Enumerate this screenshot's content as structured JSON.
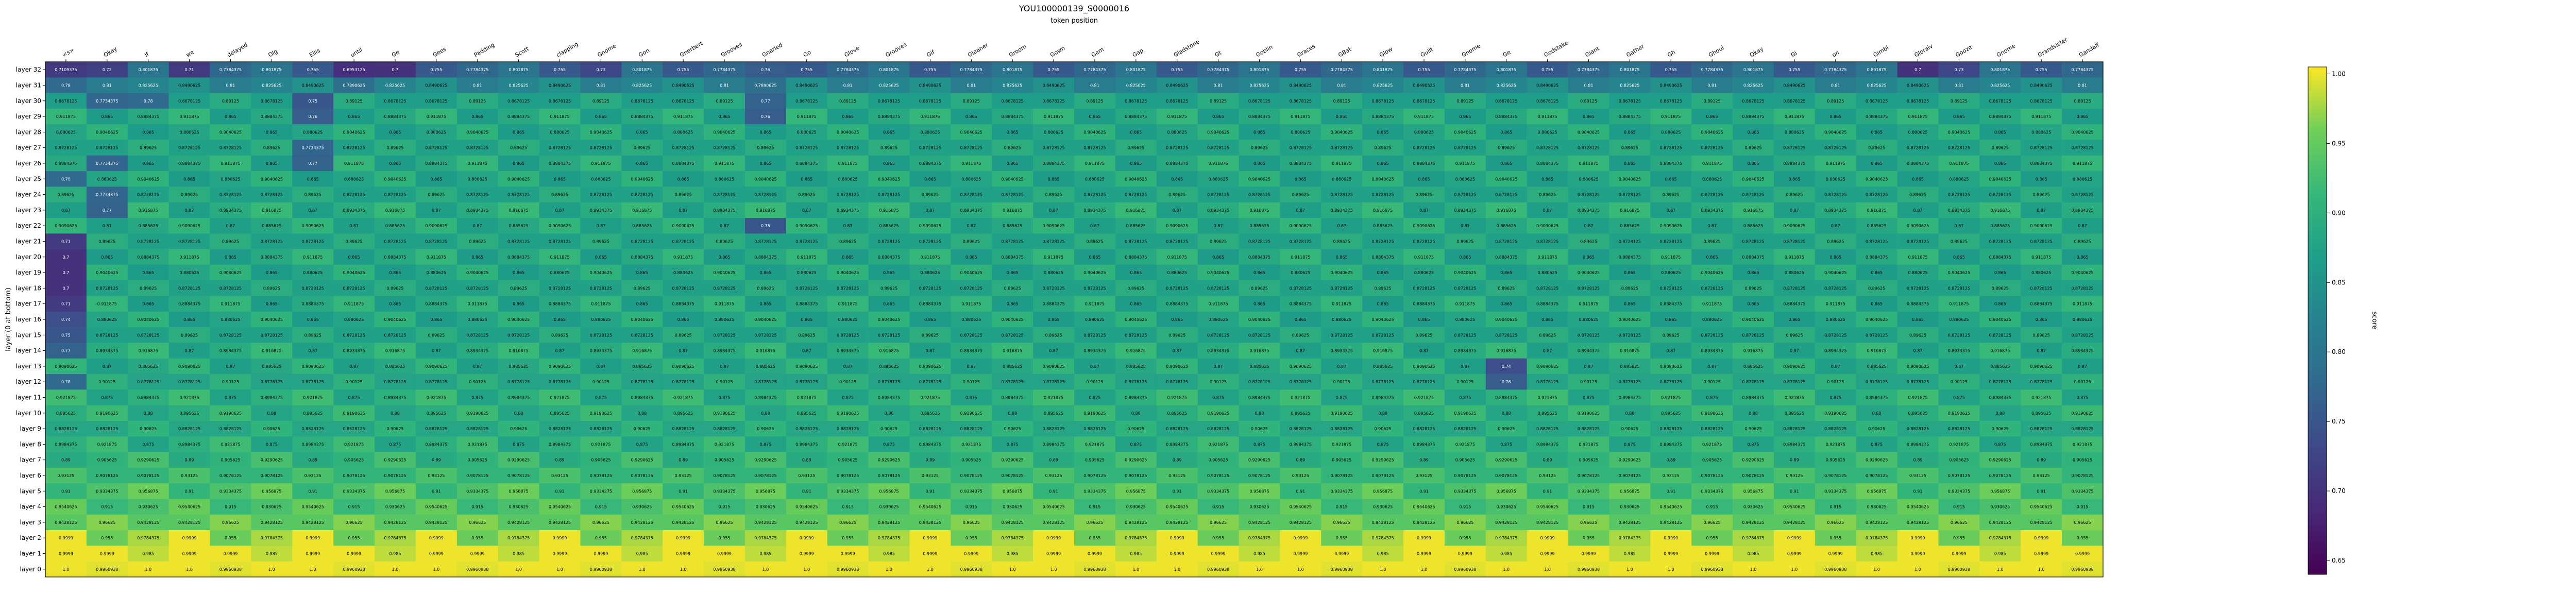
{
  "chart_data": {
    "type": "heatmap",
    "title": "YOU100000139_S0000016",
    "subtitle": "token position",
    "xlabel": "token position",
    "ylabel": "layer (0 at bottom)",
    "colorbar_label": "score",
    "colorbar_ticks": [
      "0.65",
      "0.70",
      "0.75",
      "0.80",
      "0.85",
      "0.90",
      "0.95",
      "1.00"
    ],
    "vmin": 0.64,
    "vmax": 1.005,
    "colormap": "viridis",
    "tokens": [
      "<s>",
      "Okay",
      "if",
      "we",
      "delayed",
      "Olg",
      "Ellis",
      "until",
      "Ge",
      "Gees",
      "Padding",
      "Scott",
      "clapping",
      "Gnome",
      "Gon",
      "Gnerbert",
      "Grooves",
      "Gnarled",
      "Go",
      "Glove",
      "Grooves",
      "Gif",
      "Gleaner",
      "Groom",
      "Gown",
      "Gem",
      "Gap",
      "Gladstone",
      "Gt",
      "Goblin",
      "Graces",
      "GBat",
      "Glow",
      "Guilt",
      "Gnome",
      "Ge",
      "Godstake",
      "Giant",
      "Gather",
      "Gh",
      "Ghoul",
      "Okay",
      "Gi",
      "on",
      "Gimbl",
      "Gloraiv",
      "Gooze",
      "Gnome",
      "Grandsister",
      "Gandalf"
    ],
    "layers": [
      "layer 32",
      "layer 31",
      "layer 30",
      "layer 29",
      "layer 28",
      "layer 27",
      "layer 26",
      "layer 25",
      "layer 24",
      "layer 23",
      "layer 22",
      "layer 21",
      "layer 20",
      "layer 19",
      "layer 18",
      "layer 17",
      "layer 16",
      "layer 15",
      "layer 14",
      "layer 13",
      "layer 12",
      "layer 11",
      "layer 10",
      "layer 9",
      "layer 8",
      "layer 7",
      "layer 6",
      "layer 5",
      "layer 4",
      "layer 3",
      "layer 2",
      "layer 1",
      "layer 0"
    ],
    "layer_base": [
      0.755,
      0.81,
      0.86,
      0.865,
      0.865,
      0.865,
      0.865,
      0.865,
      0.865,
      0.87,
      0.87,
      0.865,
      0.865,
      0.865,
      0.865,
      0.865,
      0.865,
      0.865,
      0.87,
      0.87,
      0.87,
      0.875,
      0.88,
      0.875,
      0.875,
      0.89,
      0.9,
      0.91,
      0.915,
      0.935,
      0.955,
      0.985,
      1.0
    ],
    "pattern": [
      0.0,
      0.0078125,
      0.015625,
      0.0234375,
      0.03125,
      0.0390625,
      0.046875,
      0.0078125,
      0.0
    ],
    "low_cells": [
      {
        "layer": "layer 32",
        "token": 0,
        "value": 0.7109375
      },
      {
        "layer": "layer 32",
        "token": 1,
        "value": 0.72
      },
      {
        "layer": "layer 32",
        "token": 3,
        "value": 0.71
      },
      {
        "layer": "layer 32",
        "token": 7,
        "value": 0.6953125
      },
      {
        "layer": "layer 32",
        "token": 8,
        "value": 0.7
      },
      {
        "layer": "layer 32",
        "token": 13,
        "value": 0.73
      },
      {
        "layer": "layer 32",
        "token": 17,
        "value": 0.76
      },
      {
        "layer": "layer 32",
        "token": 45,
        "value": 0.7
      },
      {
        "layer": "layer 32",
        "token": 46,
        "value": 0.73
      },
      {
        "layer": "layer 31",
        "token": 0,
        "value": 0.78
      },
      {
        "layer": "layer 31",
        "token": 7,
        "value": 0.7890625
      },
      {
        "layer": "layer 31",
        "token": 17,
        "value": 0.7890625
      },
      {
        "layer": "layer 30",
        "token": 1,
        "value": 0.7734375
      },
      {
        "layer": "layer 30",
        "token": 2,
        "value": 0.78
      },
      {
        "layer": "layer 30",
        "token": 6,
        "value": 0.75
      },
      {
        "layer": "layer 30",
        "token": 17,
        "value": 0.77
      },
      {
        "layer": "layer 29",
        "token": 6,
        "value": 0.76
      },
      {
        "layer": "layer 29",
        "token": 17,
        "value": 0.76
      },
      {
        "layer": "layer 27",
        "token": 6,
        "value": 0.7734375
      },
      {
        "layer": "layer 26",
        "token": 1,
        "value": 0.7734375
      },
      {
        "layer": "layer 26",
        "token": 6,
        "value": 0.77
      },
      {
        "layer": "layer 25",
        "token": 0,
        "value": 0.78
      },
      {
        "layer": "layer 24",
        "token": 1,
        "value": 0.7734375
      },
      {
        "layer": "layer 23",
        "token": 1,
        "value": 0.77
      },
      {
        "layer": "layer 22",
        "token": 17,
        "value": 0.75
      },
      {
        "layer": "layer 21",
        "token": 0,
        "value": 0.71
      },
      {
        "layer": "layer 20",
        "token": 0,
        "value": 0.7
      },
      {
        "layer": "layer 19",
        "token": 0,
        "value": 0.7
      },
      {
        "layer": "layer 18",
        "token": 0,
        "value": 0.7
      },
      {
        "layer": "layer 17",
        "token": 0,
        "value": 0.71
      },
      {
        "layer": "layer 16",
        "token": 0,
        "value": 0.74
      },
      {
        "layer": "layer 15",
        "token": 0,
        "value": 0.75
      },
      {
        "layer": "layer 14",
        "token": 0,
        "value": 0.77
      },
      {
        "layer": "layer 13",
        "token": 35,
        "value": 0.74
      },
      {
        "layer": "layer 12",
        "token": 35,
        "value": 0.76
      },
      {
        "layer": "layer 12",
        "token": 0,
        "value": 0.78
      }
    ]
  }
}
